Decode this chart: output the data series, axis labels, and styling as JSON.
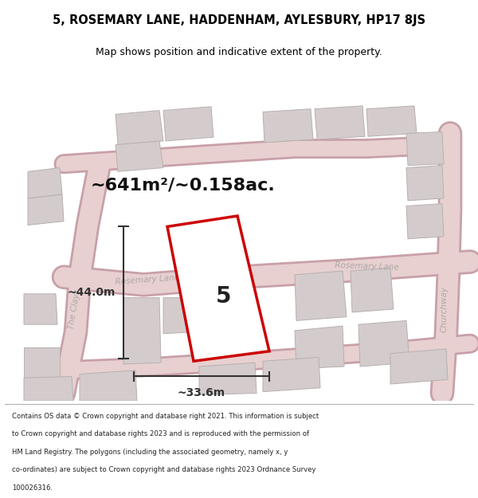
{
  "title_line1": "5, ROSEMARY LANE, HADDENHAM, AYLESBURY, HP17 8JS",
  "title_line2": "Map shows position and indicative extent of the property.",
  "area_text": "~641m²/~0.158ac.",
  "property_number": "5",
  "dim_height": "~44.0m",
  "dim_width": "~33.6m",
  "footer_lines": [
    "Contains OS data © Crown copyright and database right 2021. This information is subject",
    "to Crown copyright and database rights 2023 and is reproduced with the permission of",
    "HM Land Registry. The polygons (including the associated geometry, namely x, y",
    "co-ordinates) are subject to Crown copyright and database rights 2023 Ordnance Survey",
    "100026316."
  ],
  "map_bg": "#f0ecec",
  "plot_fill": "#ffffff",
  "plot_stroke": "#cc0000",
  "dim_color": "#333333",
  "title_color": "#000000",
  "footer_color": "#222222",
  "road_label_color": "#b0a8a8",
  "building_fill": "#d4cccc",
  "building_edge": "#b8b0b0",
  "road_fill": "#e8d0d0",
  "road_outline": "#c8a0a8"
}
